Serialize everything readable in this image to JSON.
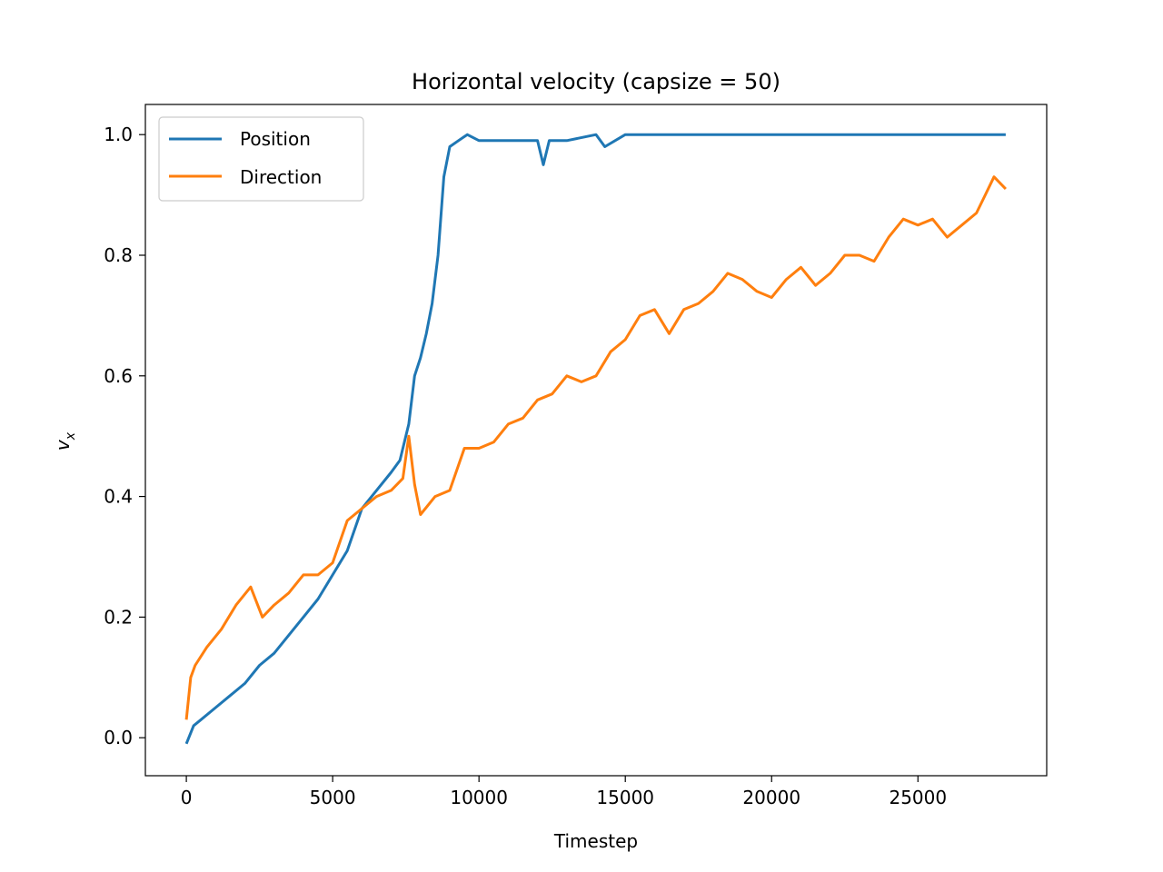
{
  "chart_data": {
    "type": "line",
    "title": "Horizontal velocity (capsize = 50)",
    "xlabel": "Timestep",
    "ylabel_main": "v",
    "ylabel_sub": "x",
    "xlim": [
      -1400,
      29400
    ],
    "ylim": [
      -0.063,
      1.05
    ],
    "xticks": [
      0,
      5000,
      10000,
      15000,
      20000,
      25000
    ],
    "xtick_labels": [
      "0",
      "5000",
      "10000",
      "15000",
      "20000",
      "25000"
    ],
    "yticks": [
      0.0,
      0.2,
      0.4,
      0.6,
      0.8,
      1.0
    ],
    "ytick_labels": [
      "0.0",
      "0.2",
      "0.4",
      "0.6",
      "0.8",
      "1.0"
    ],
    "grid": false,
    "legend_position": "top-left",
    "series": [
      {
        "name": "Position",
        "color": "#1f77b4",
        "x": [
          0,
          250,
          500,
          1000,
          1500,
          2000,
          2500,
          3000,
          3500,
          4000,
          4500,
          5000,
          5500,
          6000,
          6500,
          7000,
          7300,
          7600,
          7800,
          8000,
          8200,
          8400,
          8600,
          8800,
          9000,
          9300,
          9600,
          10000,
          11000,
          12000,
          12200,
          12400,
          13000,
          14000,
          14300,
          15000,
          16000,
          17000,
          18000,
          19000,
          20000,
          22000,
          24000,
          26000,
          28000
        ],
        "y": [
          -0.01,
          0.02,
          0.03,
          0.05,
          0.07,
          0.09,
          0.12,
          0.14,
          0.17,
          0.2,
          0.23,
          0.27,
          0.31,
          0.38,
          0.41,
          0.44,
          0.46,
          0.52,
          0.6,
          0.63,
          0.67,
          0.72,
          0.8,
          0.93,
          0.98,
          0.99,
          1.0,
          0.99,
          0.99,
          0.99,
          0.95,
          0.99,
          0.99,
          1.0,
          0.98,
          1.0,
          1.0,
          1.0,
          1.0,
          1.0,
          1.0,
          1.0,
          1.0,
          1.0,
          1.0
        ]
      },
      {
        "name": "Direction",
        "color": "#ff7f0e",
        "x": [
          0,
          150,
          300,
          700,
          1200,
          1700,
          2200,
          2600,
          3000,
          3500,
          4000,
          4500,
          5000,
          5500,
          6000,
          6500,
          7000,
          7400,
          7600,
          7800,
          8000,
          8500,
          9000,
          9500,
          10000,
          10500,
          11000,
          11500,
          12000,
          12500,
          13000,
          13500,
          14000,
          14500,
          15000,
          15500,
          16000,
          16500,
          17000,
          17500,
          18000,
          18500,
          19000,
          19500,
          20000,
          20500,
          21000,
          21500,
          22000,
          22500,
          23000,
          23500,
          24000,
          24500,
          25000,
          25500,
          26000,
          26500,
          27000,
          27300,
          27600,
          28000
        ],
        "y": [
          0.03,
          0.1,
          0.12,
          0.15,
          0.18,
          0.22,
          0.25,
          0.2,
          0.22,
          0.24,
          0.27,
          0.27,
          0.29,
          0.36,
          0.38,
          0.4,
          0.41,
          0.43,
          0.5,
          0.42,
          0.37,
          0.4,
          0.41,
          0.48,
          0.48,
          0.49,
          0.52,
          0.53,
          0.56,
          0.57,
          0.6,
          0.59,
          0.6,
          0.64,
          0.66,
          0.7,
          0.71,
          0.67,
          0.71,
          0.72,
          0.74,
          0.77,
          0.76,
          0.74,
          0.73,
          0.76,
          0.78,
          0.75,
          0.77,
          0.8,
          0.8,
          0.79,
          0.83,
          0.86,
          0.85,
          0.86,
          0.83,
          0.85,
          0.87,
          0.9,
          0.93,
          0.91
        ]
      }
    ]
  }
}
